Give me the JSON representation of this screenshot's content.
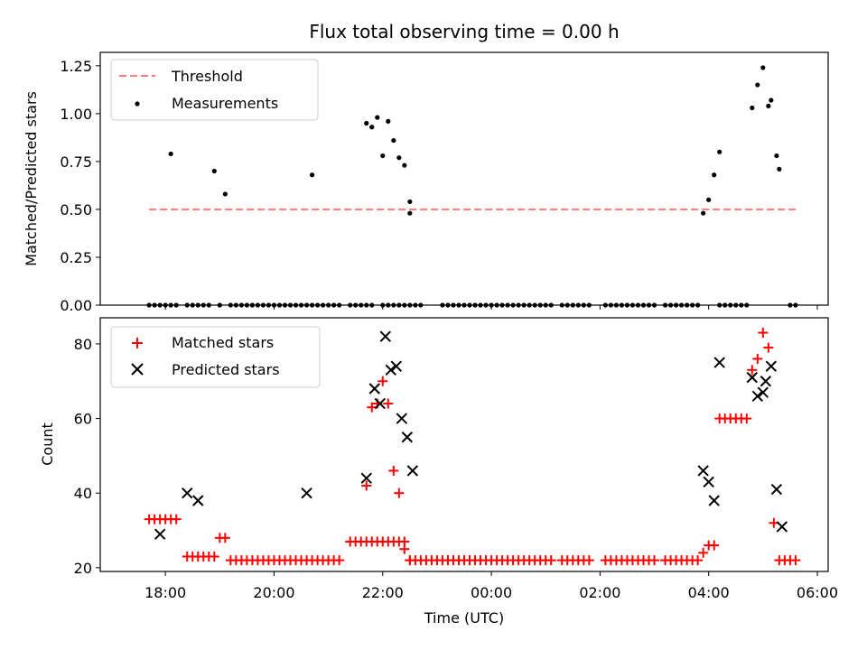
{
  "figure": {
    "title": "Flux total observing time = 0.00 h",
    "xlabel": "Time (UTC)",
    "xticklabels": [
      "18:00",
      "20:00",
      "22:00",
      "00:00",
      "02:00",
      "04:00",
      "06:00"
    ]
  },
  "colors": {
    "threshold": "#ff7f7f",
    "measurements": "#000000",
    "matched": "#ff0000",
    "predicted": "#000000"
  },
  "chart_data": [
    {
      "type": "scatter",
      "ylabel": "Matched/Predicted stars",
      "ylim": [
        0,
        1.32
      ],
      "yticks": [
        0.0,
        0.25,
        0.5,
        0.75,
        1.0,
        1.25
      ],
      "ytick_labels": [
        "0.00",
        "0.25",
        "0.50",
        "0.75",
        "1.00",
        "1.25"
      ],
      "x_unit": "hours since 00:00 UTC (negative = previous evening)",
      "xlim": [
        -7.2,
        6.2
      ],
      "legend_placement": "top-left",
      "series": [
        {
          "name": "Threshold",
          "kind": "dashed-line",
          "x": [
            -6.3,
            5.6
          ],
          "y": [
            0.5,
            0.5
          ]
        },
        {
          "name": "Measurements",
          "kind": "points",
          "x": [
            -6.3,
            -6.2,
            -6.1,
            -6.0,
            -5.9,
            -5.8,
            -5.6,
            -5.5,
            -5.4,
            -5.3,
            -5.2,
            -5.0,
            -4.8,
            -4.7,
            -4.6,
            -4.5,
            -4.4,
            -4.3,
            -4.2,
            -4.1,
            -4.0,
            -3.9,
            -3.8,
            -3.7,
            -3.6,
            -3.5,
            -3.4,
            -3.3,
            -3.2,
            -3.1,
            -3.0,
            -2.9,
            -2.8,
            -2.6,
            -2.5,
            -2.4,
            -2.3,
            -2.2,
            -2.0,
            -1.9,
            -1.8,
            -1.7,
            -1.6,
            -1.5,
            -1.4,
            -1.3,
            -0.9,
            -0.8,
            -0.7,
            -0.6,
            -0.5,
            -0.4,
            -0.3,
            -0.2,
            -0.1,
            0.0,
            0.1,
            0.2,
            0.3,
            0.4,
            0.5,
            0.6,
            0.7,
            0.8,
            0.9,
            1.0,
            1.1,
            1.3,
            1.4,
            1.5,
            1.6,
            1.7,
            1.8,
            2.1,
            2.2,
            2.3,
            2.4,
            2.5,
            2.6,
            2.7,
            2.8,
            2.9,
            3.0,
            3.2,
            3.3,
            3.4,
            3.5,
            3.6,
            3.7,
            3.8,
            4.2,
            4.3,
            4.4,
            4.5,
            4.6,
            4.7,
            5.5,
            5.6,
            -5.9,
            -5.1,
            -4.9,
            -3.3,
            -2.3,
            -2.2,
            -2.1,
            -2.0,
            -1.9,
            -1.8,
            -1.7,
            -1.6,
            -1.5,
            -1.5,
            3.9,
            4.0,
            4.1,
            4.2,
            4.8,
            4.9,
            5.0,
            5.1,
            5.15,
            5.25,
            5.3
          ],
          "y": [
            0,
            0,
            0,
            0,
            0,
            0,
            0,
            0,
            0,
            0,
            0,
            0,
            0,
            0,
            0,
            0,
            0,
            0,
            0,
            0,
            0,
            0,
            0,
            0,
            0,
            0,
            0,
            0,
            0,
            0,
            0,
            0,
            0,
            0,
            0,
            0,
            0,
            0,
            0,
            0,
            0,
            0,
            0,
            0,
            0,
            0,
            0,
            0,
            0,
            0,
            0,
            0,
            0,
            0,
            0,
            0,
            0,
            0,
            0,
            0,
            0,
            0,
            0,
            0,
            0,
            0,
            0,
            0,
            0,
            0,
            0,
            0,
            0,
            0,
            0,
            0,
            0,
            0,
            0,
            0,
            0,
            0,
            0,
            0,
            0,
            0,
            0,
            0,
            0,
            0,
            0,
            0,
            0,
            0,
            0,
            0,
            0,
            0,
            0.79,
            0.7,
            0.58,
            0.68,
            0.95,
            0.93,
            0.98,
            0.78,
            0.96,
            0.86,
            0.77,
            0.73,
            0.54,
            0.48,
            0.48,
            0.55,
            0.68,
            0.8,
            1.03,
            1.15,
            1.24,
            1.04,
            1.07,
            0.78,
            0.71
          ]
        }
      ]
    },
    {
      "type": "scatter",
      "ylabel": "Count",
      "ylim": [
        19,
        87
      ],
      "yticks": [
        20,
        40,
        60,
        80
      ],
      "ytick_labels": [
        "20",
        "40",
        "60",
        "80"
      ],
      "x_unit": "hours since 00:00 UTC (negative = previous evening)",
      "xlim": [
        -7.2,
        6.2
      ],
      "legend_placement": "top-left",
      "series": [
        {
          "name": "Matched stars",
          "marker": "plus",
          "x": [
            -6.3,
            -6.2,
            -6.1,
            -6.0,
            -5.9,
            -5.8,
            -5.6,
            -5.5,
            -5.4,
            -5.3,
            -5.2,
            -5.1,
            -5.0,
            -4.9,
            -4.8,
            -4.7,
            -4.6,
            -4.5,
            -4.4,
            -4.3,
            -4.2,
            -4.1,
            -4.0,
            -3.9,
            -3.8,
            -3.7,
            -3.6,
            -3.5,
            -3.4,
            -3.3,
            -3.2,
            -3.1,
            -3.0,
            -2.9,
            -2.8,
            -2.6,
            -2.5,
            -2.4,
            -2.3,
            -2.2,
            -2.1,
            -2.0,
            -1.9,
            -1.8,
            -1.7,
            -1.6,
            -1.5,
            -1.4,
            -1.3,
            -1.2,
            -1.1,
            -1.0,
            -0.9,
            -0.8,
            -0.7,
            -0.6,
            -0.5,
            -0.4,
            -0.3,
            -0.2,
            -0.1,
            0.0,
            0.1,
            0.2,
            0.3,
            0.4,
            0.5,
            0.6,
            0.7,
            0.8,
            0.9,
            1.0,
            1.1,
            1.3,
            1.4,
            1.5,
            1.6,
            1.7,
            1.8,
            2.1,
            2.2,
            2.3,
            2.4,
            2.5,
            2.6,
            2.7,
            2.8,
            2.9,
            3.0,
            3.2,
            3.3,
            3.4,
            3.5,
            3.6,
            3.7,
            3.8,
            3.9,
            4.0,
            4.1,
            4.2,
            4.3,
            4.4,
            4.5,
            4.6,
            4.7,
            4.8,
            4.9,
            5.0,
            5.1,
            5.2,
            5.3,
            5.4,
            5.5,
            5.6,
            -2.3,
            -2.2,
            -2.1,
            -2.0,
            -1.9,
            -1.8,
            -1.7,
            -1.6,
            -1.5
          ],
          "y": [
            33,
            33,
            33,
            33,
            33,
            33,
            23,
            23,
            23,
            23,
            23,
            23,
            28,
            28,
            22,
            22,
            22,
            22,
            22,
            22,
            22,
            22,
            22,
            22,
            22,
            22,
            22,
            22,
            22,
            22,
            22,
            22,
            22,
            22,
            22,
            27,
            27,
            27,
            27,
            27,
            27,
            27,
            27,
            27,
            27,
            27,
            22,
            22,
            22,
            22,
            22,
            22,
            22,
            22,
            22,
            22,
            22,
            22,
            22,
            22,
            22,
            22,
            22,
            22,
            22,
            22,
            22,
            22,
            22,
            22,
            22,
            22,
            22,
            22,
            22,
            22,
            22,
            22,
            22,
            22,
            22,
            22,
            22,
            22,
            22,
            22,
            22,
            22,
            22,
            22,
            22,
            22,
            22,
            22,
            22,
            22,
            24,
            26,
            26,
            60,
            60,
            60,
            60,
            60,
            60,
            73,
            76,
            83,
            79,
            32,
            22,
            22,
            22,
            22,
            42,
            63,
            64,
            70,
            64,
            46,
            40,
            25,
            22
          ]
        },
        {
          "name": "Predicted stars",
          "marker": "x",
          "x": [
            -6.1,
            -5.6,
            -5.4,
            -3.4,
            -2.3,
            -2.15,
            -2.05,
            -1.95,
            -1.85,
            -1.75,
            -1.65,
            -1.55,
            -1.45,
            3.9,
            4.0,
            4.1,
            4.2,
            4.8,
            4.9,
            5.0,
            5.05,
            5.15,
            5.25,
            5.35
          ],
          "y": [
            29,
            40,
            38,
            40,
            44,
            68,
            64,
            82,
            73,
            74,
            60,
            55,
            46,
            46,
            43,
            38,
            75,
            71,
            66,
            67,
            70,
            74,
            41,
            31
          ]
        }
      ]
    }
  ]
}
